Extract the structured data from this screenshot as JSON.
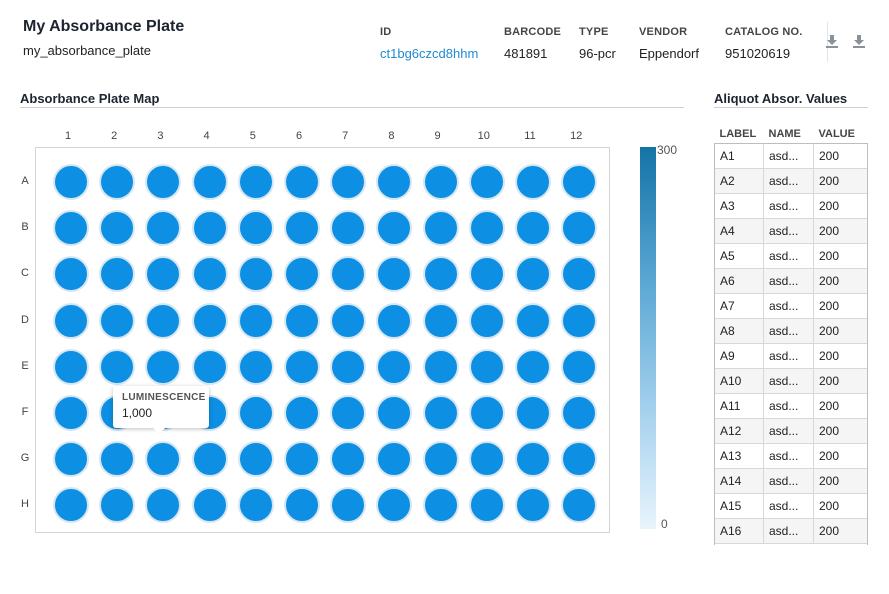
{
  "header": {
    "title": "My Absorbance Plate",
    "subtitle": "my_absorbance_plate",
    "meta": [
      {
        "label": "ID",
        "value": "ct1bg6czcd8hhm",
        "link": true
      },
      {
        "label": "BARCODE",
        "value": "481891"
      },
      {
        "label": "TYPE",
        "value": "96-pcr"
      },
      {
        "label": "VENDOR",
        "value": "Eppendorf"
      },
      {
        "label": "CATALOG NO.",
        "value": "951020619"
      }
    ],
    "icons": [
      "download-icon",
      "download-icon"
    ]
  },
  "plate_map": {
    "title": "Absorbance Plate Map",
    "columns": [
      "1",
      "2",
      "3",
      "4",
      "5",
      "6",
      "7",
      "8",
      "9",
      "10",
      "11",
      "12"
    ],
    "rows": [
      "A",
      "B",
      "C",
      "D",
      "E",
      "F",
      "G",
      "H"
    ],
    "well_color": "#0d8fe3",
    "colorbar": {
      "max": "300",
      "min": "0"
    },
    "tooltip": {
      "label": "LUMINESCENCE",
      "value": "1,000"
    }
  },
  "aliquot_table": {
    "title": "Aliquot Absor. Values",
    "headers": [
      "LABEL",
      "NAME",
      "VALUE"
    ],
    "rows": [
      [
        "A1",
        "asd...",
        "200"
      ],
      [
        "A2",
        "asd...",
        "200"
      ],
      [
        "A3",
        "asd...",
        "200"
      ],
      [
        "A4",
        "asd...",
        "200"
      ],
      [
        "A5",
        "asd...",
        "200"
      ],
      [
        "A6",
        "asd...",
        "200"
      ],
      [
        "A7",
        "asd...",
        "200"
      ],
      [
        "A8",
        "asd...",
        "200"
      ],
      [
        "A9",
        "asd...",
        "200"
      ],
      [
        "A10",
        "asd...",
        "200"
      ],
      [
        "A11",
        "asd...",
        "200"
      ],
      [
        "A12",
        "asd...",
        "200"
      ],
      [
        "A13",
        "asd...",
        "200"
      ],
      [
        "A14",
        "asd...",
        "200"
      ],
      [
        "A15",
        "asd...",
        "200"
      ],
      [
        "A16",
        "asd...",
        "200"
      ]
    ]
  }
}
